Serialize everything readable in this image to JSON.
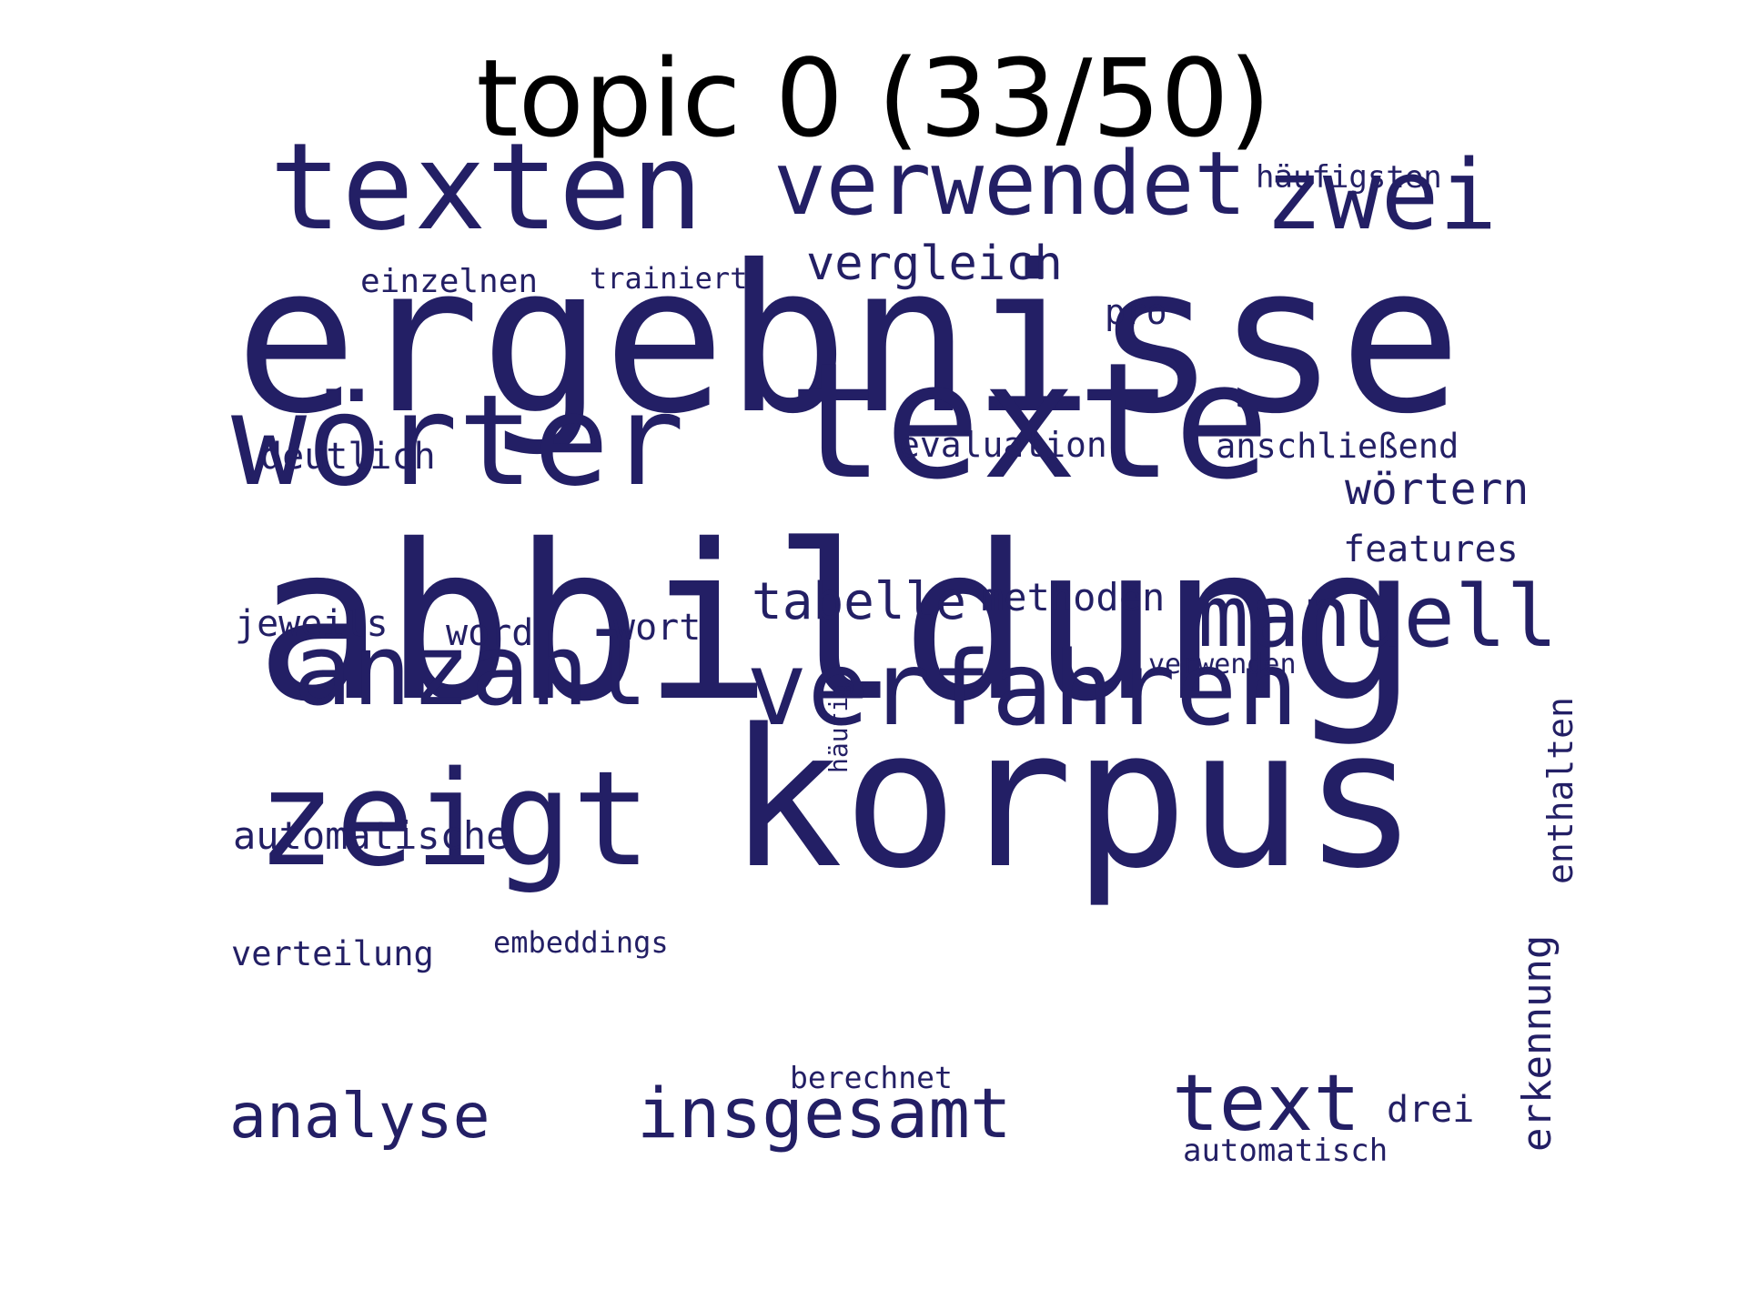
{
  "title": "topic 0 (33/50)",
  "word_color": "#231f65",
  "words": [
    {
      "text": "ergebnisse",
      "orientation": "horizontal"
    },
    {
      "text": "abbildung",
      "orientation": "horizontal"
    },
    {
      "text": "korpus",
      "orientation": "horizontal"
    },
    {
      "text": "texte",
      "orientation": "horizontal"
    },
    {
      "text": "texten",
      "orientation": "horizontal"
    },
    {
      "text": "wörter",
      "orientation": "horizontal"
    },
    {
      "text": "verwendet",
      "orientation": "horizontal"
    },
    {
      "text": "zwei",
      "orientation": "horizontal"
    },
    {
      "text": "zeigt",
      "orientation": "horizontal"
    },
    {
      "text": "verfahren",
      "orientation": "horizontal"
    },
    {
      "text": "anzahl",
      "orientation": "horizontal"
    },
    {
      "text": "manuell",
      "orientation": "horizontal"
    },
    {
      "text": "text",
      "orientation": "horizontal"
    },
    {
      "text": "insgesamt",
      "orientation": "horizontal"
    },
    {
      "text": "analyse",
      "orientation": "horizontal"
    },
    {
      "text": "tabelle",
      "orientation": "horizontal"
    },
    {
      "text": "vergleich",
      "orientation": "horizontal"
    },
    {
      "text": "wörtern",
      "orientation": "horizontal"
    },
    {
      "text": "erkennung",
      "orientation": "vertical"
    },
    {
      "text": "enthalten",
      "orientation": "vertical"
    },
    {
      "text": "methoden",
      "orientation": "horizontal"
    },
    {
      "text": "features",
      "orientation": "horizontal"
    },
    {
      "text": "automatische",
      "orientation": "horizontal"
    },
    {
      "text": "evaluation",
      "orientation": "horizontal"
    },
    {
      "text": "deutlich",
      "orientation": "horizontal"
    },
    {
      "text": "anschließend",
      "orientation": "horizontal"
    },
    {
      "text": "häufigsten",
      "orientation": "horizontal"
    },
    {
      "text": "jeweils",
      "orientation": "horizontal"
    },
    {
      "text": "word",
      "orientation": "horizontal"
    },
    {
      "text": "wort",
      "orientation": "horizontal"
    },
    {
      "text": "verteilung",
      "orientation": "horizontal"
    },
    {
      "text": "einzelnen",
      "orientation": "horizontal"
    },
    {
      "text": "automatisch",
      "orientation": "horizontal"
    },
    {
      "text": "drei",
      "orientation": "horizontal"
    },
    {
      "text": "pro",
      "orientation": "horizontal"
    },
    {
      "text": "trainiert",
      "orientation": "horizontal"
    },
    {
      "text": "embeddings",
      "orientation": "horizontal"
    },
    {
      "text": "berechnet",
      "orientation": "horizontal"
    },
    {
      "text": "verwenden",
      "orientation": "horizontal"
    },
    {
      "text": "häufig",
      "orientation": "vertical"
    }
  ]
}
